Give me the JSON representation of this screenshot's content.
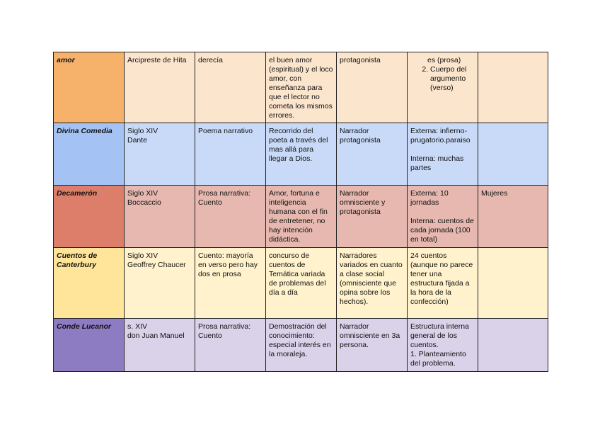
{
  "rows": [
    {
      "title": "amor",
      "author": "Arcipreste de Hita",
      "genre": "derecía",
      "theme": "el buen amor (espiritual) y el loco amor, con enseñanza para que el lector no cometa los mismos errores.",
      "narrator": "protagonista",
      "structure_cont": "es (prosa)",
      "structure_item": "Cuerpo del argumento (verso)",
      "extra": "",
      "colors": {
        "title_bg": "#f6b26b",
        "cell_bg": "#fce5cd"
      }
    },
    {
      "title": "Divina Comedia",
      "author": "Siglo XIV\nDante",
      "genre": "Poema narrativo",
      "theme": "Recorrido del poeta a través del mas allá para llegar a Dios.",
      "narrator": "Narrador protagonista",
      "structure": "Externa: infierno-prugatorio.paraiso\n\nInterna: muchas partes",
      "extra": "",
      "colors": {
        "title_bg": "#a4c2f4",
        "cell_bg": "#c9daf8"
      }
    },
    {
      "title": "Decamerón",
      "author": "Siglo XIV\nBoccaccio",
      "genre": "Prosa narrativa: Cuento",
      "theme": "Amor, fortuna e inteligencia humana con el fin de entretener, no hay intención didáctica.",
      "narrator": "Narrador omnisciente y protagonista",
      "structure": "Externa: 10 jornadas\n\nInterna: cuentos de cada jornada (100 en total)",
      "extra": "Mujeres",
      "colors": {
        "title_bg": "#dd7e6b",
        "cell_bg": "#e6b8af"
      }
    },
    {
      "title": "Cuentos de Canterbury",
      "author": "Siglo XIV\nGeoffrey Chaucer",
      "genre": "Cuento: mayoría en verso pero hay dos en prosa",
      "theme": "concurso de cuentos de Temática variada de problemas del día a día",
      "narrator": "Narradores variados en cuanto a clase social (omnisciente que opina sobre los hechos).",
      "structure": "24 cuentos (aunque no parece tener una estructura fijada a la hora de la confección)",
      "extra": "",
      "colors": {
        "title_bg": "#ffe599",
        "cell_bg": "#fff2cc"
      }
    },
    {
      "title": "Conde Lucanor",
      "author": "s. XIV\ndon Juan Manuel",
      "genre": "Prosa narrativa: Cuento",
      "theme": "Demostración del conocimiento: especial interés en la moraleja.",
      "narrator": "Narrador omnisciente en 3a persona.",
      "structure": "Estructura interna general de los cuentos.\n1. Planteamiento del problema.",
      "extra": "",
      "colors": {
        "title_bg": "#8e7cc3",
        "cell_bg": "#d9d2e9"
      }
    }
  ]
}
